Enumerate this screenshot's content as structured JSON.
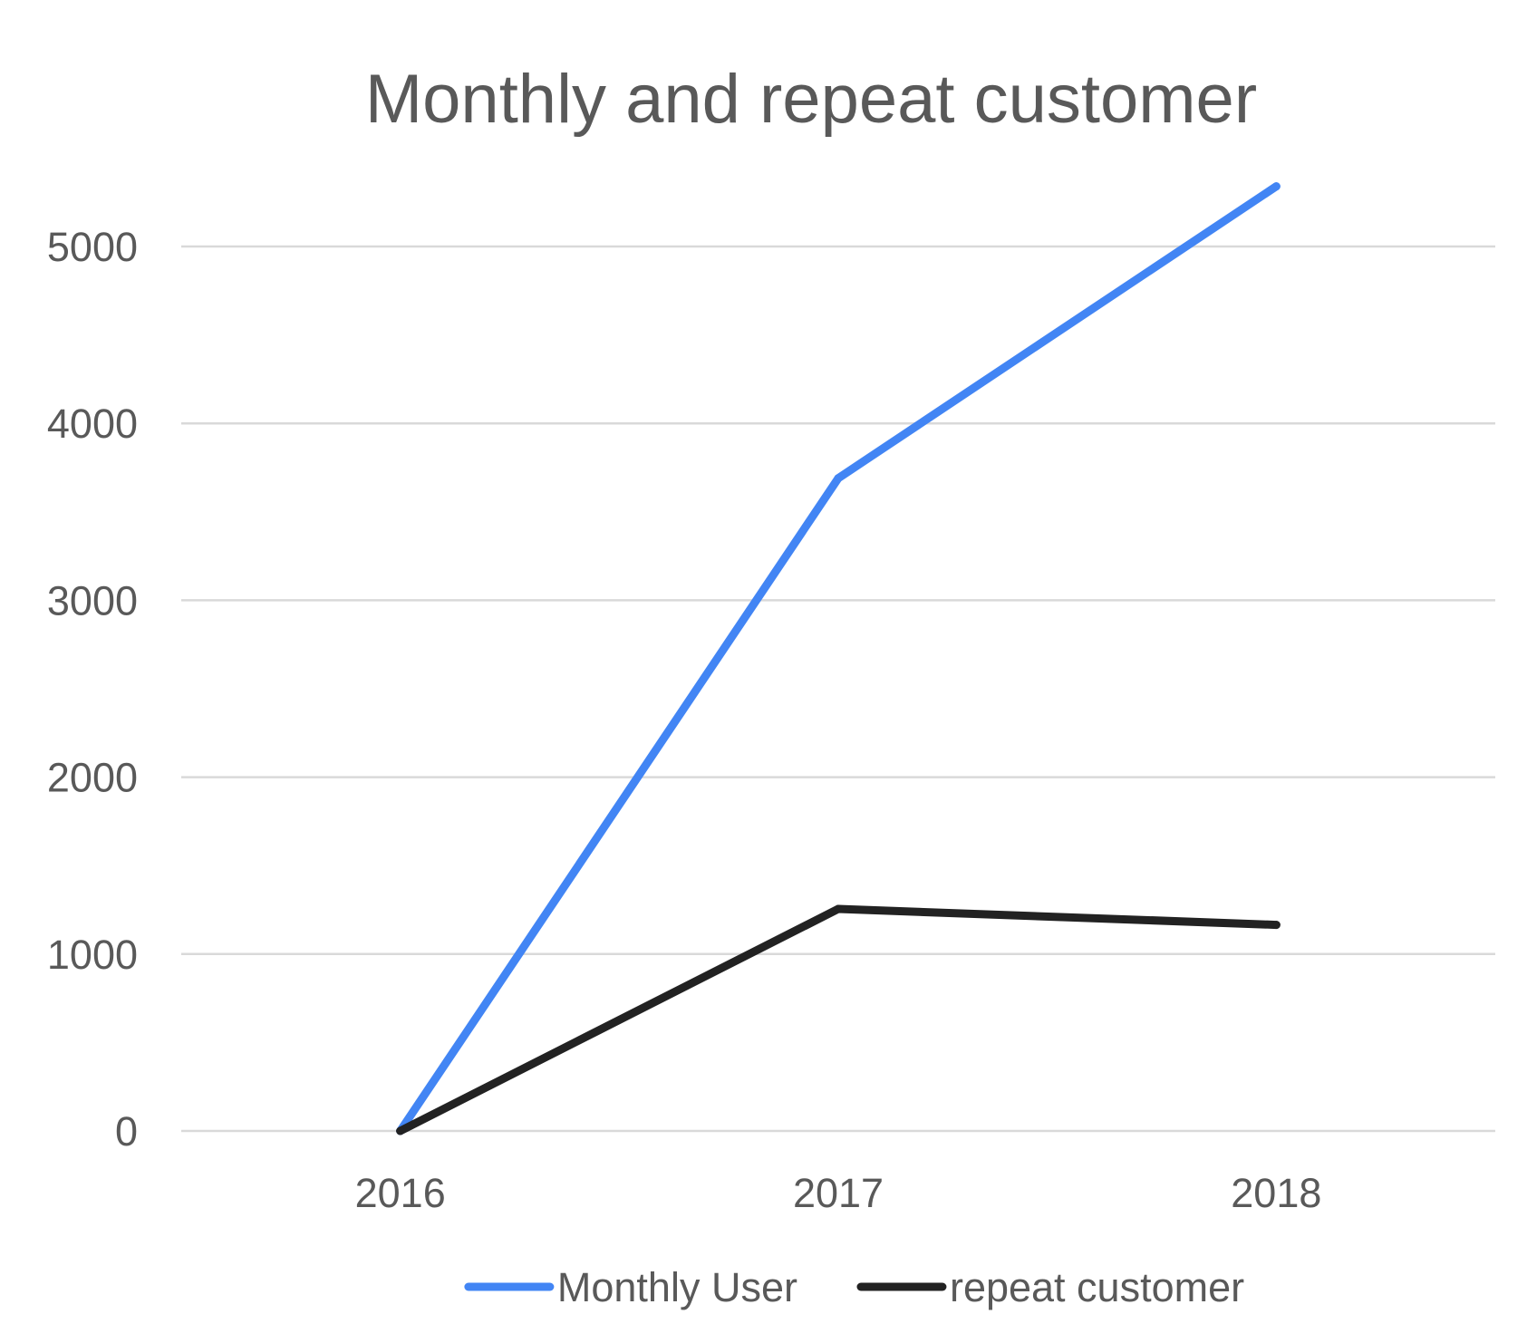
{
  "chart_data": {
    "type": "line",
    "title": "Monthly and repeat customer",
    "xlabel": "",
    "ylabel": "",
    "categories": [
      "2016",
      "2017",
      "2018"
    ],
    "ylim": [
      0,
      5000
    ],
    "yticks": [
      "0",
      "1000",
      "2000",
      "3000",
      "4000",
      "5000"
    ],
    "grid": true,
    "legend_position": "bottom",
    "series": [
      {
        "name": "Monthly User",
        "color": "#4285f4",
        "values": [
          0,
          3690,
          5340
        ]
      },
      {
        "name": "repeat customer",
        "color": "#222222",
        "values": [
          0,
          1255,
          1165
        ]
      }
    ]
  }
}
